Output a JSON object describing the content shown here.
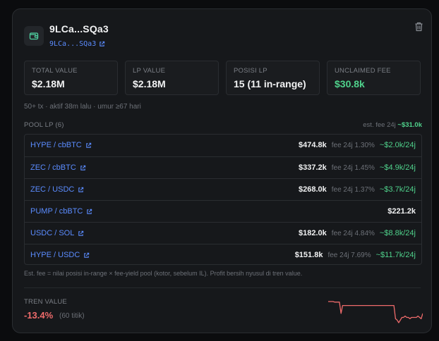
{
  "wallet": {
    "title": "9LCa...SQa3",
    "address_link": "9LCa...SQa3",
    "icon": "wallet-icon",
    "delete_icon": "trash-icon"
  },
  "stats": [
    {
      "label": "TOTAL VALUE",
      "value": "$2.18M",
      "color": "#f1f2f3"
    },
    {
      "label": "LP VALUE",
      "value": "$2.18M",
      "color": "#f1f2f3"
    },
    {
      "label": "POSISI LP",
      "value": "15 (11 in-range)",
      "color": "#f1f2f3"
    },
    {
      "label": "UNCLAIMED FEE",
      "value": "$30.8k",
      "color": "#4fd18b"
    }
  ],
  "meta": "50+ tx · aktif 38m lalu · umur ≥67 hari",
  "pool": {
    "title": "POOL LP (6)",
    "est_label": "est. fee 24j",
    "est_value": "~$31.0k",
    "rows": [
      {
        "pair": "HYPE / cbBTC",
        "amount": "$474.8k",
        "fee": "fee 24j 1.30%",
        "est": "~$2.0k/24j"
      },
      {
        "pair": "ZEC / cbBTC",
        "amount": "$337.2k",
        "fee": "fee 24j 1.45%",
        "est": "~$4.9k/24j"
      },
      {
        "pair": "ZEC / USDC",
        "amount": "$268.0k",
        "fee": "fee 24j 1.37%",
        "est": "~$3.7k/24j"
      },
      {
        "pair": "PUMP / cbBTC",
        "amount": "$221.2k",
        "fee": "",
        "est": ""
      },
      {
        "pair": "USDC / SOL",
        "amount": "$182.0k",
        "fee": "fee 24j 4.84%",
        "est": "~$8.8k/24j"
      },
      {
        "pair": "HYPE / USDC",
        "amount": "$151.8k",
        "fee": "fee 24j 7.69%",
        "est": "~$11.7k/24j"
      }
    ]
  },
  "footnote": "Est. fee = nilai posisi in-range × fee-yield pool (kotor, sebelum IL). Profit bersih nyusul di tren value.",
  "trend": {
    "label": "TREN VALUE",
    "value": "-13.4%",
    "points": "(60 titik)",
    "color": "#ef6b6b",
    "spark_values": [
      100,
      100,
      100,
      100,
      99.6,
      99.6,
      99.6,
      99.6,
      91,
      97,
      97,
      97,
      97,
      97,
      97,
      97,
      97,
      97,
      97,
      97,
      97,
      97,
      97,
      97,
      97,
      97,
      97,
      97,
      97,
      97,
      97,
      97,
      97,
      97,
      97,
      97,
      97,
      97,
      97,
      97,
      97,
      97,
      87,
      86,
      84,
      86,
      88,
      88,
      89,
      88,
      88,
      87,
      88,
      88,
      88,
      88,
      89,
      88,
      87,
      91
    ]
  },
  "colors": {
    "accent": "#5b8cff",
    "positive": "#4fd18b",
    "negative": "#ef6b6b"
  }
}
